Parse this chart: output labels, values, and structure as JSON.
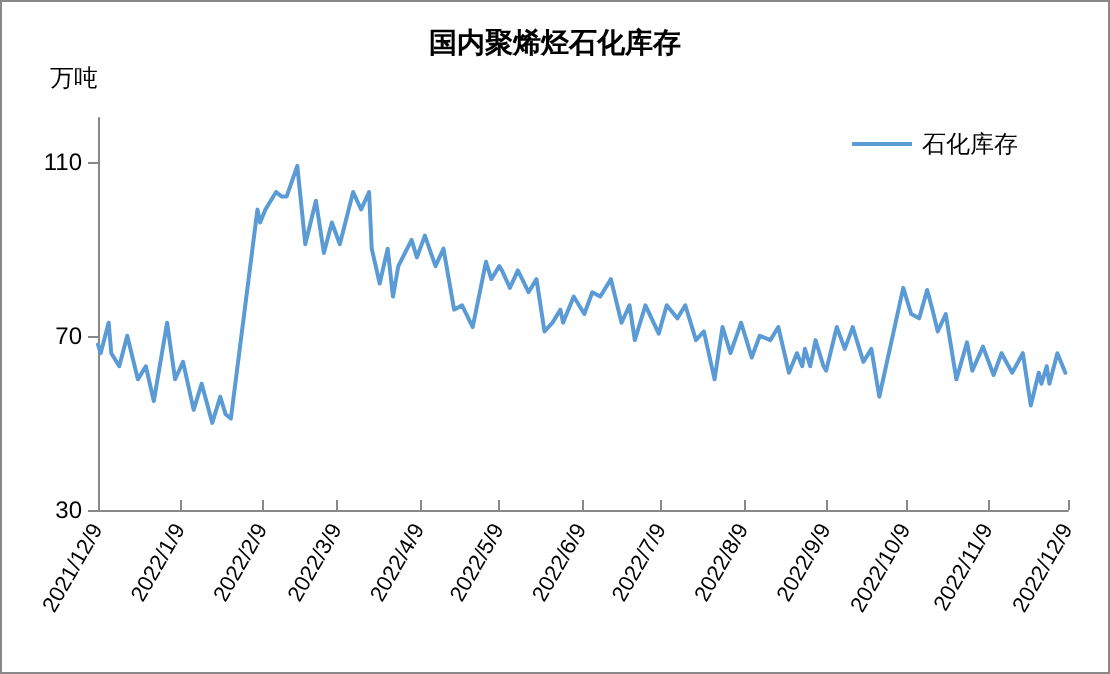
{
  "chart_data": {
    "type": "line",
    "title": "国内聚烯烃石化库存",
    "ylabel": "万吨",
    "x": [
      "2021-12-09",
      "2021-12-10",
      "2021-12-13",
      "2021-12-14",
      "2021-12-17",
      "2021-12-20",
      "2021-12-24",
      "2021-12-27",
      "2021-12-30",
      "2022-01-04",
      "2022-01-07",
      "2022-01-10",
      "2022-01-14",
      "2022-01-17",
      "2022-01-21",
      "2022-01-24",
      "2022-01-26",
      "2022-01-28",
      "2022-02-07",
      "2022-02-08",
      "2022-02-10",
      "2022-02-14",
      "2022-02-16",
      "2022-02-18",
      "2022-02-22",
      "2022-02-25",
      "2022-03-01",
      "2022-03-04",
      "2022-03-07",
      "2022-03-10",
      "2022-03-15",
      "2022-03-18",
      "2022-03-21",
      "2022-03-22",
      "2022-03-25",
      "2022-03-28",
      "2022-03-30",
      "2022-04-01",
      "2022-04-06",
      "2022-04-08",
      "2022-04-11",
      "2022-04-15",
      "2022-04-18",
      "2022-04-22",
      "2022-04-25",
      "2022-04-29",
      "2022-05-04",
      "2022-05-06",
      "2022-05-09",
      "2022-05-10",
      "2022-05-13",
      "2022-05-16",
      "2022-05-20",
      "2022-05-23",
      "2022-05-26",
      "2022-05-29",
      "2022-06-01",
      "2022-06-02",
      "2022-06-06",
      "2022-06-10",
      "2022-06-13",
      "2022-06-16",
      "2022-06-20",
      "2022-06-24",
      "2022-06-27",
      "2022-06-29",
      "2022-07-03",
      "2022-07-08",
      "2022-07-11",
      "2022-07-15",
      "2022-07-18",
      "2022-07-22",
      "2022-07-25",
      "2022-07-29",
      "2022-08-01",
      "2022-08-04",
      "2022-08-08",
      "2022-08-12",
      "2022-08-15",
      "2022-08-19",
      "2022-08-22",
      "2022-08-26",
      "2022-08-29",
      "2022-08-31",
      "2022-09-01",
      "2022-09-03",
      "2022-09-05",
      "2022-09-08",
      "2022-09-09",
      "2022-09-13",
      "2022-09-16",
      "2022-09-19",
      "2022-09-23",
      "2022-09-26",
      "2022-09-29",
      "2022-10-08",
      "2022-10-11",
      "2022-10-14",
      "2022-10-17",
      "2022-10-19",
      "2022-10-21",
      "2022-10-24",
      "2022-10-28",
      "2022-11-01",
      "2022-11-03",
      "2022-11-07",
      "2022-11-11",
      "2022-11-14",
      "2022-11-18",
      "2022-11-22",
      "2022-11-25",
      "2022-11-28",
      "2022-11-29",
      "2022-12-01",
      "2022-12-02",
      "2022-12-05",
      "2022-12-08"
    ],
    "series": [
      {
        "name": "石化库存",
        "color": "#5b9bd5",
        "values": [
          68,
          66,
          73,
          66,
          63,
          70,
          60,
          63,
          55,
          73,
          60,
          64,
          53,
          59,
          50,
          56,
          52,
          51,
          99,
          96,
          99,
          103,
          102,
          102,
          109,
          91,
          101,
          89,
          96,
          91,
          103,
          99,
          103,
          90,
          82,
          90,
          79,
          86,
          92,
          88,
          93,
          86,
          90,
          76,
          77,
          72,
          87,
          83,
          86,
          85,
          81,
          85,
          80,
          83,
          71,
          73,
          76,
          73,
          79,
          75,
          80,
          79,
          83,
          73,
          77,
          69,
          77,
          70.5,
          77,
          74,
          77,
          69,
          71,
          60,
          72,
          66,
          73,
          65,
          70,
          69,
          72,
          61.5,
          66,
          63,
          67,
          63,
          69,
          63,
          62,
          72,
          67,
          72,
          64,
          67,
          56,
          81,
          75,
          74,
          80.5,
          76,
          71,
          75,
          60,
          68.5,
          62,
          67.5,
          61,
          66,
          61.5,
          66,
          54,
          61.5,
          59,
          63,
          59,
          66,
          61.5
        ]
      }
    ],
    "ylim": [
      30,
      120
    ],
    "yticks": [
      30,
      70,
      110
    ],
    "xlim": [
      "2021-12-09",
      "2022-12-09"
    ],
    "xticks": [
      {
        "value": "2021-12-09",
        "label": "2021/12/9"
      },
      {
        "value": "2022-01-09",
        "label": "2022/1/9"
      },
      {
        "value": "2022-02-09",
        "label": "2022/2/9"
      },
      {
        "value": "2022-03-09",
        "label": "2022/3/9"
      },
      {
        "value": "2022-04-09",
        "label": "2022/4/9"
      },
      {
        "value": "2022-05-09",
        "label": "2022/5/9"
      },
      {
        "value": "2022-06-09",
        "label": "2022/6/9"
      },
      {
        "value": "2022-07-09",
        "label": "2022/7/9"
      },
      {
        "value": "2022-08-09",
        "label": "2022/8/9"
      },
      {
        "value": "2022-09-09",
        "label": "2022/9/9"
      },
      {
        "value": "2022-10-09",
        "label": "2022/10/9"
      },
      {
        "value": "2022-11-09",
        "label": "2022/11/9"
      },
      {
        "value": "2022-12-09",
        "label": "2022/12/9"
      }
    ],
    "grid": false,
    "legend": "top right",
    "marker": "none",
    "line_style": "solid"
  }
}
